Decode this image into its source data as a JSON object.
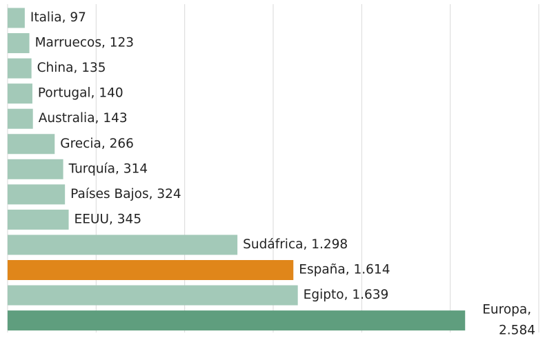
{
  "chart_data": {
    "type": "bar",
    "orientation": "horizontal",
    "categories": [
      "Italia",
      "Marruecos",
      "China",
      "Portugal",
      "Australia",
      "Grecia",
      "Turquía",
      "Países Bajos",
      "EEUU",
      "Sudáfrica",
      "España",
      "Egipto",
      "Europa"
    ],
    "values": [
      97,
      123,
      135,
      140,
      143,
      266,
      314,
      324,
      345,
      1298,
      1614,
      1639,
      2584
    ],
    "value_labels": [
      "97",
      "123",
      "135",
      "140",
      "143",
      "266",
      "314",
      "324",
      "345",
      "1.298",
      "1.614",
      "1.639",
      "2.584"
    ],
    "label_separator": ", ",
    "colors": [
      "#a3c9b8",
      "#a3c9b8",
      "#a3c9b8",
      "#a3c9b8",
      "#a3c9b8",
      "#a3c9b8",
      "#a3c9b8",
      "#a3c9b8",
      "#a3c9b8",
      "#a3c9b8",
      "#e0861a",
      "#a3c9b8",
      "#5f9e7e"
    ],
    "xlim": [
      0,
      3000
    ],
    "xticks": [
      0,
      500,
      1000,
      1500,
      2000,
      2500,
      3000
    ],
    "grid": true
  }
}
